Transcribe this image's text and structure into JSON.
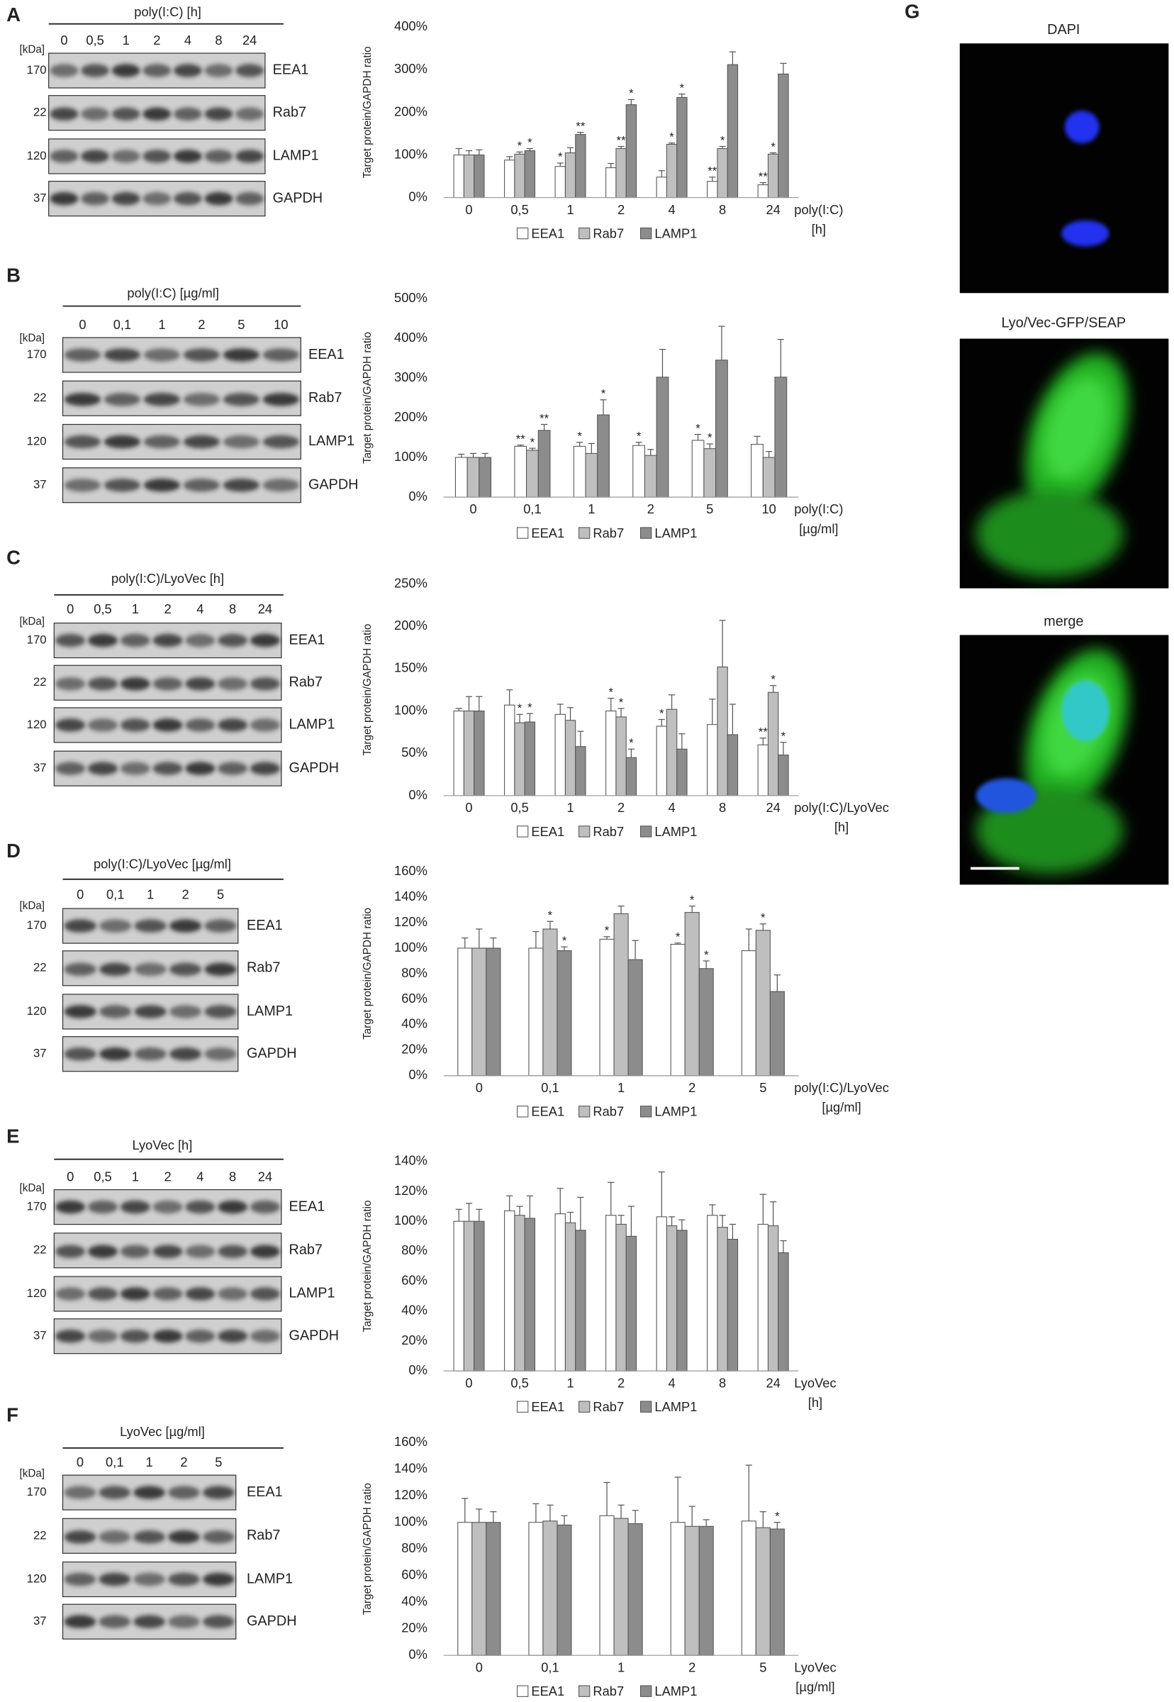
{
  "chart_data": [
    {
      "type": "bar",
      "y_label": "Target protein/GAPDH ratio",
      "x_label": [
        "poly(I:C)",
        "[h]"
      ],
      "categories": [
        "0",
        "0,5",
        "1",
        "2",
        "4",
        "8",
        "24"
      ],
      "ylim": [
        0,
        400
      ],
      "yticks": [
        {
          "value": 0,
          "label": "0%"
        },
        {
          "value": 100,
          "label": "100%"
        },
        {
          "value": 200,
          "label": "200%"
        },
        {
          "value": 300,
          "label": "300%"
        },
        {
          "value": 400,
          "label": "400%"
        }
      ],
      "series": [
        {
          "name": "EEA1",
          "color": "#ffffff",
          "values": [
            100,
            88,
            73,
            70,
            48,
            38,
            30
          ],
          "errors": [
            15,
            8,
            8,
            10,
            15,
            10,
            5
          ],
          "stars": [
            null,
            null,
            "*",
            null,
            null,
            "**",
            "**"
          ]
        },
        {
          "name": "Rab7",
          "color": "#bfbfbf",
          "values": [
            100,
            102,
            105,
            115,
            125,
            115,
            102
          ],
          "errors": [
            10,
            5,
            12,
            5,
            3,
            5,
            3
          ],
          "stars": [
            null,
            "*",
            null,
            "**",
            "*",
            "*",
            "*"
          ]
        },
        {
          "name": "LAMP1",
          "color": "#8c8c8c",
          "values": [
            100,
            110,
            148,
            218,
            235,
            312,
            290
          ],
          "errors": [
            12,
            5,
            5,
            12,
            8,
            30,
            25
          ],
          "stars": [
            null,
            "*",
            "**",
            "*",
            "*",
            null,
            null
          ]
        }
      ]
    },
    {
      "type": "bar",
      "y_label": "Target protein/GAPDH ratio",
      "x_label": [
        "poly(I:C)",
        "[µg/ml]"
      ],
      "categories": [
        "0",
        "0,1",
        "1",
        "2",
        "5",
        "10"
      ],
      "ylim": [
        0,
        500
      ],
      "yticks": [
        {
          "value": 0,
          "label": "0%"
        },
        {
          "value": 100,
          "label": "100%"
        },
        {
          "value": 200,
          "label": "200%"
        },
        {
          "value": 300,
          "label": "300%"
        },
        {
          "value": 400,
          "label": "400%"
        },
        {
          "value": 500,
          "label": "500%"
        }
      ],
      "series": [
        {
          "name": "EEA1",
          "color": "#ffffff",
          "values": [
            100,
            128,
            128,
            130,
            143,
            133
          ],
          "errors": [
            8,
            3,
            10,
            8,
            15,
            20
          ],
          "stars": [
            null,
            "**",
            "*",
            "*",
            "*",
            null
          ]
        },
        {
          "name": "Rab7",
          "color": "#bfbfbf",
          "values": [
            100,
            118,
            110,
            105,
            122,
            100
          ],
          "errors": [
            10,
            5,
            25,
            15,
            12,
            15
          ],
          "stars": [
            null,
            "*",
            null,
            null,
            "*",
            null
          ]
        },
        {
          "name": "LAMP1",
          "color": "#8c8c8c",
          "values": [
            100,
            168,
            207,
            302,
            345,
            302
          ],
          "errors": [
            10,
            15,
            38,
            70,
            85,
            95
          ],
          "stars": [
            null,
            "**",
            "*",
            null,
            null,
            null
          ]
        }
      ]
    },
    {
      "type": "bar",
      "y_label": "Target protein/GAPDH ratio",
      "x_label": [
        "poly(I:C)/LyoVec",
        "[h]"
      ],
      "categories": [
        "0",
        "0,5",
        "1",
        "2",
        "4",
        "8",
        "24"
      ],
      "ylim": [
        0,
        250
      ],
      "yticks": [
        {
          "value": 0,
          "label": "0%"
        },
        {
          "value": 50,
          "label": "50%"
        },
        {
          "value": 100,
          "label": "100%"
        },
        {
          "value": 150,
          "label": "150%"
        },
        {
          "value": 200,
          "label": "200%"
        },
        {
          "value": 250,
          "label": "250%"
        }
      ],
      "series": [
        {
          "name": "EEA1",
          "color": "#ffffff",
          "values": [
            100,
            107,
            96,
            100,
            82,
            84,
            60
          ],
          "errors": [
            3,
            18,
            12,
            15,
            8,
            30,
            8
          ],
          "stars": [
            null,
            null,
            null,
            "*",
            "*",
            null,
            "**"
          ]
        },
        {
          "name": "Rab7",
          "color": "#bfbfbf",
          "values": [
            100,
            86,
            89,
            93,
            102,
            152,
            122
          ],
          "errors": [
            17,
            10,
            15,
            10,
            17,
            55,
            8
          ],
          "stars": [
            null,
            "*",
            null,
            "*",
            null,
            null,
            "*"
          ]
        },
        {
          "name": "LAMP1",
          "color": "#8c8c8c",
          "values": [
            100,
            87,
            58,
            45,
            55,
            72,
            48
          ],
          "errors": [
            17,
            10,
            18,
            10,
            18,
            36,
            15
          ],
          "stars": [
            null,
            "*",
            null,
            "*",
            null,
            null,
            "*"
          ]
        }
      ]
    },
    {
      "type": "bar",
      "y_label": "Target protein/GAPDH ratio",
      "x_label": [
        "poly(I:C)/LyoVec",
        "[µg/ml]"
      ],
      "categories": [
        "0",
        "0,1",
        "1",
        "2",
        "5"
      ],
      "ylim": [
        0,
        160
      ],
      "yticks": [
        {
          "value": 0,
          "label": "0%"
        },
        {
          "value": 20,
          "label": "20%"
        },
        {
          "value": 40,
          "label": "40%"
        },
        {
          "value": 60,
          "label": "60%"
        },
        {
          "value": 80,
          "label": "80%"
        },
        {
          "value": 100,
          "label": "100%"
        },
        {
          "value": 120,
          "label": "120%"
        },
        {
          "value": 140,
          "label": "140%"
        },
        {
          "value": 160,
          "label": "160%"
        }
      ],
      "series": [
        {
          "name": "EEA1",
          "color": "#ffffff",
          "values": [
            100,
            100,
            107,
            103,
            98
          ],
          "errors": [
            8,
            13,
            2,
            1,
            17
          ],
          "stars": [
            null,
            null,
            "*",
            "*",
            null
          ]
        },
        {
          "name": "Rab7",
          "color": "#bfbfbf",
          "values": [
            100,
            115,
            127,
            128,
            114
          ],
          "errors": [
            15,
            6,
            6,
            5,
            5
          ],
          "stars": [
            null,
            "*",
            null,
            "*",
            "*"
          ]
        },
        {
          "name": "LAMP1",
          "color": "#8c8c8c",
          "values": [
            100,
            98,
            91,
            84,
            66
          ],
          "errors": [
            8,
            3,
            15,
            6,
            13
          ],
          "stars": [
            null,
            "*",
            null,
            "*",
            null
          ]
        }
      ]
    },
    {
      "type": "bar",
      "y_label": "Target protein/GAPDH ratio",
      "x_label": [
        "LyoVec",
        "[h]"
      ],
      "categories": [
        "0",
        "0,5",
        "1",
        "2",
        "4",
        "8",
        "24"
      ],
      "ylim": [
        0,
        140
      ],
      "yticks": [
        {
          "value": 0,
          "label": "0%"
        },
        {
          "value": 20,
          "label": "20%"
        },
        {
          "value": 40,
          "label": "40%"
        },
        {
          "value": 60,
          "label": "60%"
        },
        {
          "value": 80,
          "label": "80%"
        },
        {
          "value": 100,
          "label": "100%"
        },
        {
          "value": 120,
          "label": "120%"
        },
        {
          "value": 140,
          "label": "140%"
        }
      ],
      "series": [
        {
          "name": "EEA1",
          "color": "#ffffff",
          "values": [
            100,
            107,
            105,
            104,
            103,
            104,
            98
          ],
          "errors": [
            8,
            10,
            17,
            22,
            30,
            7,
            20
          ],
          "stars": [
            null,
            null,
            null,
            null,
            null,
            null,
            null
          ]
        },
        {
          "name": "Rab7",
          "color": "#bfbfbf",
          "values": [
            100,
            104,
            99,
            98,
            97,
            96,
            97
          ],
          "errors": [
            12,
            6,
            7,
            6,
            6,
            8,
            16
          ],
          "stars": [
            null,
            null,
            null,
            null,
            null,
            null,
            null
          ]
        },
        {
          "name": "LAMP1",
          "color": "#8c8c8c",
          "values": [
            100,
            102,
            94,
            90,
            94,
            88,
            79
          ],
          "errors": [
            8,
            15,
            22,
            20,
            7,
            10,
            8
          ],
          "stars": [
            null,
            null,
            null,
            null,
            null,
            null,
            null
          ]
        }
      ]
    },
    {
      "type": "bar",
      "y_label": "Target protein/GAPDH ratio",
      "x_label": [
        "LyoVec",
        "[µg/ml]"
      ],
      "categories": [
        "0",
        "0,1",
        "1",
        "2",
        "5"
      ],
      "ylim": [
        0,
        160
      ],
      "yticks": [
        {
          "value": 0,
          "label": "0%"
        },
        {
          "value": 20,
          "label": "20%"
        },
        {
          "value": 40,
          "label": "40%"
        },
        {
          "value": 60,
          "label": "60%"
        },
        {
          "value": 80,
          "label": "80%"
        },
        {
          "value": 100,
          "label": "100%"
        },
        {
          "value": 120,
          "label": "120%"
        },
        {
          "value": 140,
          "label": "140%"
        },
        {
          "value": 160,
          "label": "160%"
        }
      ],
      "series": [
        {
          "name": "EEA1",
          "color": "#ffffff",
          "values": [
            100,
            100,
            105,
            100,
            101
          ],
          "errors": [
            18,
            14,
            25,
            34,
            42
          ],
          "stars": [
            null,
            null,
            null,
            null,
            null
          ]
        },
        {
          "name": "Rab7",
          "color": "#bfbfbf",
          "values": [
            100,
            101,
            103,
            97,
            96
          ],
          "errors": [
            10,
            12,
            10,
            15,
            12
          ],
          "stars": [
            null,
            null,
            null,
            null,
            null
          ]
        },
        {
          "name": "LAMP1",
          "color": "#8c8c8c",
          "values": [
            100,
            98,
            99,
            97,
            95
          ],
          "errors": [
            8,
            7,
            10,
            5,
            5
          ],
          "stars": [
            null,
            null,
            null,
            null,
            "*"
          ]
        }
      ]
    }
  ],
  "blots": [
    {
      "panel": "A",
      "title": "poly(I:C) [h]",
      "lanes": [
        "0",
        "0,5",
        "1",
        "2",
        "4",
        "8",
        "24"
      ],
      "kda_unit": "[kDa]",
      "kda": [
        "170",
        "22",
        "120",
        "37"
      ],
      "proteins": [
        "EEA1",
        "Rab7",
        "LAMP1",
        "GAPDH"
      ]
    },
    {
      "panel": "B",
      "title": "poly(I:C) [µg/ml]",
      "lanes": [
        "0",
        "0,1",
        "1",
        "2",
        "5",
        "10"
      ],
      "kda_unit": "[kDa]",
      "kda": [
        "170",
        "22",
        "120",
        "37"
      ],
      "proteins": [
        "EEA1",
        "Rab7",
        "LAMP1",
        "GAPDH"
      ]
    },
    {
      "panel": "C",
      "title": "poly(I:C)/LyoVec [h]",
      "lanes": [
        "0",
        "0,5",
        "1",
        "2",
        "4",
        "8",
        "24"
      ],
      "kda_unit": "[kDa]",
      "kda": [
        "170",
        "22",
        "120",
        "37"
      ],
      "proteins": [
        "EEA1",
        "Rab7",
        "LAMP1",
        "GAPDH"
      ]
    },
    {
      "panel": "D",
      "title": "poly(I:C)/LyoVec [µg/ml]",
      "lanes": [
        "0",
        "0,1",
        "1",
        "2",
        "5"
      ],
      "kda_unit": "[kDa]",
      "kda": [
        "170",
        "22",
        "120",
        "37"
      ],
      "proteins": [
        "EEA1",
        "Rab7",
        "LAMP1",
        "GAPDH"
      ]
    },
    {
      "panel": "E",
      "title": "LyoVec [h]",
      "lanes": [
        "0",
        "0,5",
        "1",
        "2",
        "4",
        "8",
        "24"
      ],
      "kda_unit": "[kDa]",
      "kda": [
        "170",
        "22",
        "120",
        "37"
      ],
      "proteins": [
        "EEA1",
        "Rab7",
        "LAMP1",
        "GAPDH"
      ]
    },
    {
      "panel": "F",
      "title": "LyoVec [µg/ml]",
      "lanes": [
        "0",
        "0,1",
        "1",
        "2",
        "5"
      ],
      "kda_unit": "[kDa]",
      "kda": [
        "170",
        "22",
        "120",
        "37"
      ],
      "proteins": [
        "EEA1",
        "Rab7",
        "LAMP1",
        "GAPDH"
      ]
    }
  ],
  "panel_g": {
    "panel": "G",
    "images": [
      "DAPI",
      "Lyo/Vec-GFP/SEAP",
      "merge"
    ]
  }
}
